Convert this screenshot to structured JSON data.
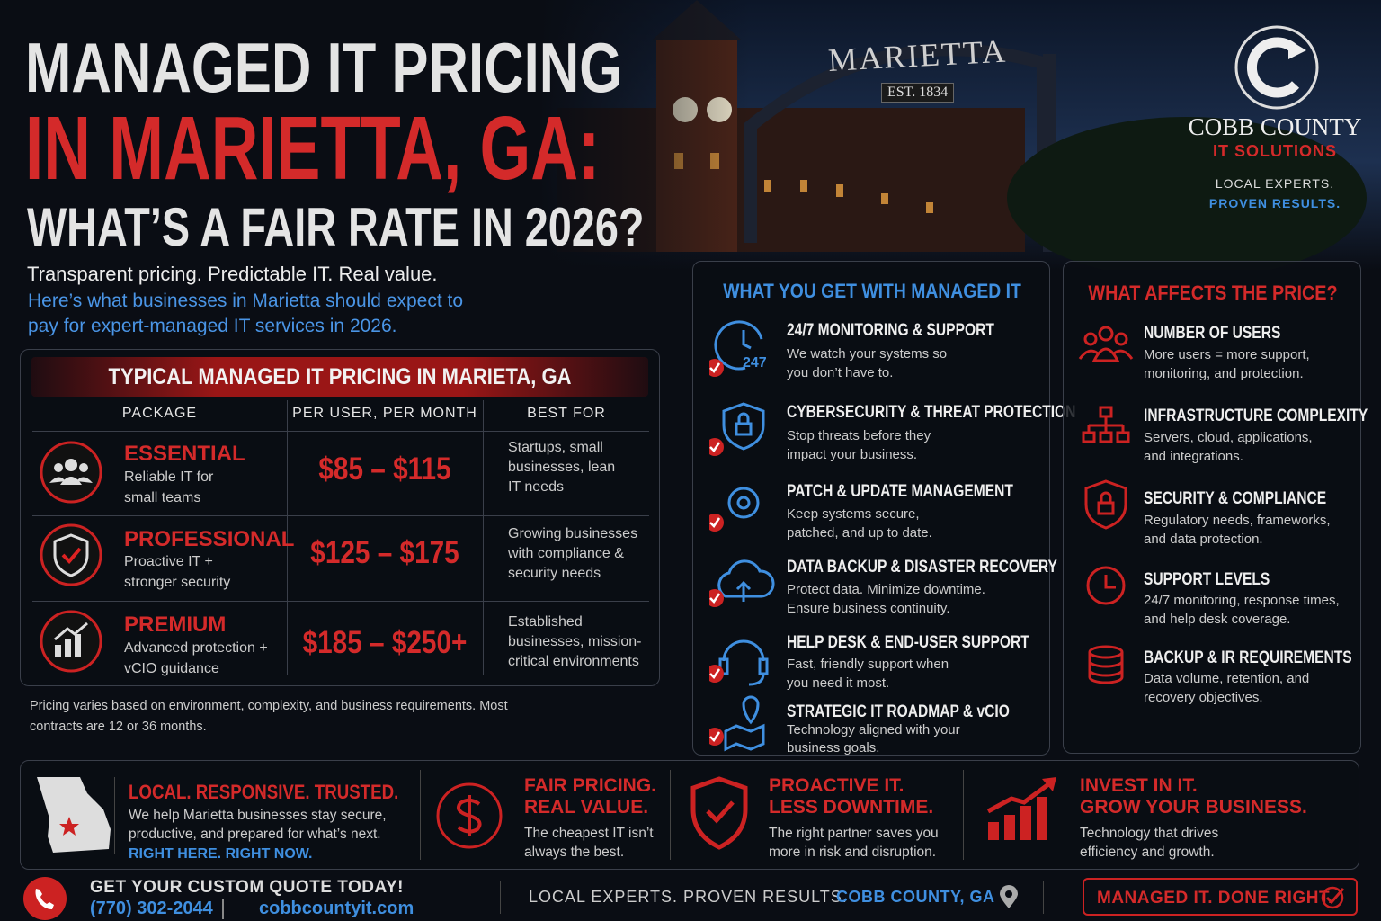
{
  "header": {
    "title_line1": "MANAGED IT PRICING",
    "title_line2": "IN MARIETTA, GA:",
    "title_line3": "WHAT’S A FAIR RATE IN 2026?",
    "tagline": "Transparent pricing. Predictable IT. Real value.",
    "intro": "Here’s what businesses in Marietta should expect to pay for expert-managed IT services in 2026."
  },
  "photo": {
    "sign": "MARIETTA",
    "est": "EST. 1834"
  },
  "brand": {
    "name": "COBB COUNTY",
    "sub": "IT SOLUTIONS",
    "slogan1": "LOCAL EXPERTS.",
    "slogan2": "PROVEN RESULTS."
  },
  "pricing": {
    "title": "TYPICAL MANAGED IT PRICING IN MARIETA, GA",
    "columns": [
      "PACKAGE",
      "PER USER, PER MONTH",
      "BEST FOR"
    ],
    "rows": [
      {
        "name": "ESSENTIAL",
        "desc": "Reliable IT for small teams",
        "price": "$85 – $115",
        "best_for": "Startups, small businesses, lean IT needs"
      },
      {
        "name": "PROFESSIONAL",
        "desc": "Proactive IT + stronger security",
        "price": "$125 – $175",
        "best_for": "Growing businesses with compliance & security needs"
      },
      {
        "name": "PREMIUM",
        "desc": "Advanced protection + vCIO guidance",
        "price": "$185 – $250+",
        "best_for": "Established businesses, mission-critical environments"
      }
    ],
    "note": "Pricing varies based on environment, complexity, and business requirements. Most contracts are 12 or 36 months."
  },
  "services": {
    "title": "WHAT YOU GET WITH MANAGED IT",
    "icon_label": "247",
    "items": [
      {
        "title": "24/7 MONITORING & SUPPORT",
        "desc": "We watch your systems so you don’t have to."
      },
      {
        "title": "CYBERSECURITY & THREAT PROTECTION",
        "desc": "Stop threats before they impact your business."
      },
      {
        "title": "PATCH & UPDATE MANAGEMENT",
        "desc": "Keep systems secure, patched, and up to date."
      },
      {
        "title": "DATA BACKUP & DISASTER RECOVERY",
        "desc": "Protect data. Minimize downtime. Ensure business continuity."
      },
      {
        "title": "HELP DESK & END-USER SUPPORT",
        "desc": "Fast, friendly support when you need it most."
      },
      {
        "title": "STRATEGIC IT ROADMAP & vCIO",
        "desc": "Technology aligned with your business goals."
      }
    ]
  },
  "factors": {
    "title": "WHAT AFFECTS THE PRICE?",
    "items": [
      {
        "title": "NUMBER OF USERS",
        "desc": "More users = more support, monitoring, and protection."
      },
      {
        "title": "INFRASTRUCTURE COMPLEXITY",
        "desc": "Servers, cloud, applications, and integrations."
      },
      {
        "title": "SECURITY & COMPLIANCE",
        "desc": "Regulatory needs, frameworks, and data protection."
      },
      {
        "title": "SUPPORT LEVELS",
        "desc": "24/7 monitoring, response times, and help desk coverage."
      },
      {
        "title": "BACKUP & IR REQUIREMENTS",
        "desc": "Data volume, retention, and recovery objectives."
      }
    ]
  },
  "benefits": [
    {
      "title": [
        "LOCAL. RESPONSIVE. TRUSTED."
      ],
      "desc": "We help Marietta businesses stay secure, productive, and prepared for what’s next.",
      "accent": "RIGHT HERE. RIGHT NOW."
    },
    {
      "title": [
        "FAIR PRICING.",
        "REAL VALUE."
      ],
      "desc": "The cheapest IT isn’t always the best."
    },
    {
      "title": [
        "PROACTIVE IT.",
        "LESS DOWNTIME."
      ],
      "desc": "The right partner saves you more in risk and disruption."
    },
    {
      "title": [
        "INVEST IN IT.",
        "GROW YOUR BUSINESS."
      ],
      "desc": "Technology that drives efficiency and growth."
    }
  ],
  "footer": {
    "cta": "GET YOUR CUSTOM QUOTE TODAY!",
    "phone": "(770) 302-2044",
    "website": "cobbcountyit.com",
    "slogan": "LOCAL EXPERTS. PROVEN RESULTS.",
    "location": "COBB COUNTY, GA",
    "badge": "MANAGED IT. DONE RIGHT."
  }
}
